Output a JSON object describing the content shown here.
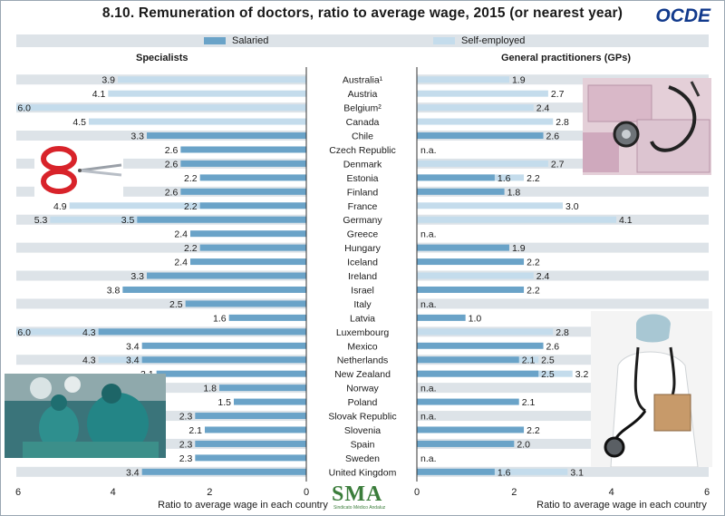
{
  "header": {
    "title": "8.10. Remuneration of doctors, ratio to average wage, 2015 (or nearest year)",
    "brand": "OCDE"
  },
  "legend": {
    "salaried": "Salaried",
    "self_employed": "Self-employed"
  },
  "colors": {
    "salaried": "#6aa3c8",
    "self_employed": "#c4dcec",
    "band": "#dde3e8"
  },
  "logo": {
    "text": "SMA",
    "subtitle": "Sindicato Médico Andaluz"
  },
  "chart_data": [
    {
      "type": "bar",
      "title": "Specialists",
      "xlabel": "Ratio to average wage in each country",
      "orientation": "horizontal",
      "x_reversed": true,
      "xlim": [
        0,
        6
      ],
      "xticks": [
        "6",
        "4",
        "2",
        "0"
      ],
      "categories": [
        "Australia¹",
        "Austria",
        "Belgium²",
        "Canada",
        "Chile",
        "Czech Republic",
        "Denmark",
        "Estonia",
        "Finland",
        "France",
        "Germany",
        "Greece",
        "Hungary",
        "Iceland",
        "Ireland",
        "Israel",
        "Italy",
        "Latvia",
        "Luxembourg",
        "Mexico",
        "Netherlands",
        "New Zealand",
        "Norway",
        "Poland",
        "Slovak Republic",
        "Slovenia",
        "Spain",
        "Sweden",
        "United Kingdom"
      ],
      "series": [
        {
          "name": "Salaried",
          "values": [
            null,
            null,
            null,
            null,
            3.3,
            2.6,
            2.6,
            2.2,
            2.6,
            2.2,
            3.5,
            2.4,
            2.2,
            2.4,
            3.3,
            3.8,
            2.5,
            1.6,
            4.3,
            3.4,
            3.4,
            3.1,
            1.8,
            1.5,
            2.3,
            2.1,
            2.3,
            2.3,
            3.4
          ]
        },
        {
          "name": "Self-employed",
          "values": [
            3.9,
            4.1,
            6.0,
            4.5,
            null,
            null,
            null,
            null,
            null,
            4.9,
            5.3,
            null,
            null,
            null,
            null,
            null,
            null,
            null,
            6.0,
            null,
            4.3,
            null,
            null,
            null,
            null,
            null,
            null,
            null,
            null
          ]
        }
      ]
    },
    {
      "type": "bar",
      "title": "General practitioners (GPs)",
      "xlabel": "Ratio to average wage in each country",
      "orientation": "horizontal",
      "xlim": [
        0,
        6
      ],
      "xticks": [
        "0",
        "2",
        "4",
        "6"
      ],
      "categories": [
        "Australia¹",
        "Austria",
        "Belgium²",
        "Canada",
        "Chile",
        "Czech Republic",
        "Denmark",
        "Estonia",
        "Finland",
        "France",
        "Germany",
        "Greece",
        "Hungary",
        "Iceland",
        "Ireland",
        "Israel",
        "Italy",
        "Latvia",
        "Luxembourg",
        "Mexico",
        "Netherlands",
        "New Zealand",
        "Norway",
        "Poland",
        "Slovak Republic",
        "Slovenia",
        "Spain",
        "Sweden",
        "United Kingdom"
      ],
      "not_available_label": "n.a.",
      "series": [
        {
          "name": "Salaried",
          "values": [
            null,
            null,
            null,
            null,
            2.6,
            null,
            null,
            1.6,
            1.8,
            null,
            null,
            null,
            1.9,
            2.2,
            null,
            2.2,
            null,
            1.0,
            null,
            2.6,
            2.1,
            2.5,
            null,
            2.1,
            null,
            2.2,
            2.0,
            null,
            1.6
          ]
        },
        {
          "name": "Self-employed",
          "values": [
            1.9,
            2.7,
            2.4,
            2.8,
            null,
            null,
            2.7,
            2.2,
            null,
            3.0,
            4.1,
            null,
            null,
            null,
            2.4,
            null,
            null,
            null,
            2.8,
            null,
            2.5,
            3.2,
            null,
            null,
            null,
            null,
            null,
            null,
            3.1
          ]
        }
      ]
    }
  ]
}
